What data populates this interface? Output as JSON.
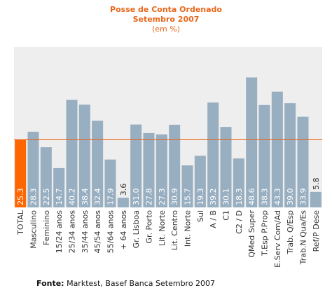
{
  "title": "Posse de Conta Ordenado",
  "subtitle": "Setembro 2007",
  "unit_note": "(em %)",
  "source_label": "Fonte:",
  "source_text": "Marktest, Basef Banca Setembro 2007",
  "colors": {
    "title": "#e8671b",
    "plot_bg": "#eeeeee",
    "bar": "#98aec1",
    "highlight_bar": "#ff6600",
    "reference_line": "#e8671b",
    "value_label": "#ffffff",
    "axis_label": "#333333"
  },
  "chart_data": {
    "type": "bar",
    "title": "Posse de Conta Ordenado",
    "subtitle": "Setembro 2007",
    "ylabel": "",
    "xlabel": "",
    "ylim": [
      0,
      60
    ],
    "grid": false,
    "legend": "none",
    "reference_line": 25.3,
    "highlight_index": 0,
    "categories": [
      "TOTAL",
      "Masculino",
      "Feminino",
      "15/24 anos",
      "25/34 anos",
      "35/44 anos",
      "45/54 anos",
      "55/64 anos",
      "+ 64 anos",
      "Gr. Lisboa",
      "Gr. Porto",
      "Lit. Norte",
      "Lit. Centro",
      "Int. Norte",
      "Sul",
      "A / B",
      "C1",
      "C2 / D",
      "QMed Super",
      "T.Esp P.Prop",
      "E.Serv Com/Ad",
      "Trab. Q/Esp",
      "Trab.N Qua/Es",
      "Ref/P Dese"
    ],
    "values": [
      25.3,
      28.3,
      22.5,
      14.7,
      40.2,
      38.4,
      32.4,
      17.9,
      3.6,
      31.0,
      27.8,
      27.3,
      30.9,
      15.7,
      19.3,
      39.2,
      30.1,
      18.3,
      48.6,
      38.3,
      43.3,
      39.0,
      33.9,
      5.8
    ],
    "value_labels": [
      "25.3",
      "28.3",
      "22.5",
      "14.7",
      "40.2",
      "38.4",
      "32.4",
      "17.9",
      "3.6",
      "31.0",
      "27.8",
      "27.3",
      "30.9",
      "15.7",
      "19.3",
      "39.2",
      "30.1",
      "18.3",
      "48.6",
      "38.3",
      "43.3",
      "39.0",
      "33.9",
      "5.8"
    ]
  }
}
